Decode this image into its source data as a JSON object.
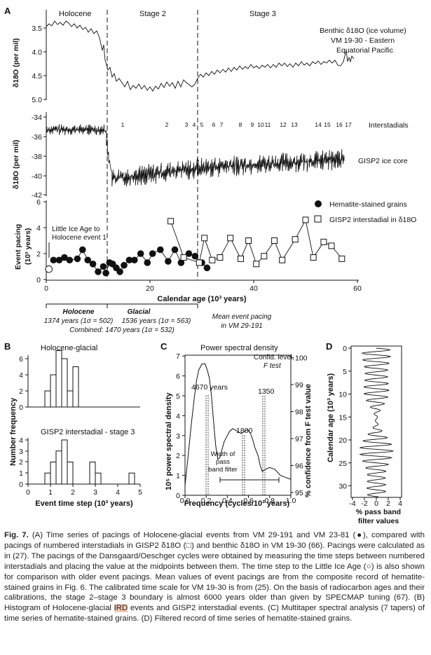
{
  "panelA": {
    "letter": "A",
    "periods": [
      "Holocene",
      "Stage 2",
      "Stage 3"
    ],
    "benthic": {
      "label_lines": [
        "Benthic δ18O (ice volume)",
        "VM 19-30 - Eastern",
        "Equatorial Pacific"
      ],
      "ylabel": "δ18O (per mil)",
      "ticks": [
        "3.5",
        "4.0",
        "4.5",
        "5.0"
      ]
    },
    "gisp": {
      "ylabel": "δ18O (per mil)",
      "ticks": [
        "-34",
        "-36",
        "-38",
        "-40",
        "-42"
      ],
      "label": "GISP2 ice core",
      "interstadials_label": "Interstadials",
      "interstadial_numbers": [
        "1",
        "2",
        "3",
        "4",
        "5",
        "6",
        "7",
        "8",
        "9",
        "10",
        "11",
        "12",
        "13",
        "14",
        "15",
        "16",
        "17"
      ]
    },
    "pacing": {
      "ylabel_lines": [
        "Event pacing",
        "(10³ years)"
      ],
      "ticks": [
        "0",
        "2",
        "4",
        "6"
      ],
      "xticks": [
        "0",
        "20",
        "40",
        "60"
      ],
      "xlabel": "Calendar age (10³ years)",
      "legend": [
        "Hematite-stained grains",
        "GISP2 interstadial in δ18O"
      ],
      "lia_note": [
        "Little Ice Age to",
        "Holocene event 1"
      ],
      "hematite": [
        [
          1.4,
          1.5
        ],
        [
          2.5,
          1.5
        ],
        [
          3.5,
          1.7
        ],
        [
          4.5,
          1.5
        ],
        [
          6,
          1.6
        ],
        [
          7,
          2.3
        ],
        [
          8,
          1.5
        ],
        [
          9,
          1.2
        ],
        [
          10,
          0.6
        ],
        [
          11,
          1.0
        ],
        [
          11.5,
          0.5
        ],
        [
          12.2,
          1.3
        ],
        [
          12.8,
          1.2
        ],
        [
          13.5,
          0.9
        ],
        [
          14.2,
          0.6
        ],
        [
          15,
          1.1
        ],
        [
          16,
          1.5
        ],
        [
          17,
          1.5
        ],
        [
          18.2,
          2.0
        ],
        [
          19.5,
          1.3
        ],
        [
          20.5,
          2.0
        ],
        [
          22,
          2.3
        ],
        [
          23.5,
          1.4
        ],
        [
          24.8,
          2.3
        ],
        [
          26,
          1.3
        ],
        [
          27.5,
          2.0
        ],
        [
          28.7,
          1.8
        ],
        [
          30,
          1.3
        ],
        [
          31,
          0.9
        ]
      ],
      "gisp2": [
        [
          24,
          4.5
        ],
        [
          26.5,
          1.7
        ],
        [
          29.5,
          1.3
        ],
        [
          30.5,
          3.2
        ],
        [
          32,
          1.5
        ],
        [
          33.5,
          1.7
        ],
        [
          35.5,
          3.2
        ],
        [
          37.5,
          1.6
        ],
        [
          39,
          3.0
        ],
        [
          40.5,
          1.2
        ],
        [
          42,
          1.8
        ],
        [
          44,
          3.0
        ],
        [
          45.5,
          1.5
        ],
        [
          48,
          3.1
        ],
        [
          50,
          4.6
        ],
        [
          51.5,
          1.7
        ],
        [
          53.5,
          2.9
        ],
        [
          55,
          2.6
        ],
        [
          57,
          1.6
        ]
      ],
      "lia_value": [
        0.5,
        0.8
      ]
    },
    "summary": {
      "holocene": "Holocene",
      "glacial": "Glacial",
      "holocene_value": "1374 years (1σ = 502)",
      "glacial_value": "1536 years (1σ = 563)",
      "combined": "Combined: 1470 years (1σ = 532)",
      "mean_note": [
        "Mean event pacing",
        "in VM 29-191"
      ]
    }
  },
  "panelB": {
    "letter": "B",
    "title1": "Holocene-glacial",
    "title2": "GISP2 interstadial - stage 3",
    "ylabel": "Number frequency",
    "xlabel": "Event time step (10³ years)",
    "yticks1": [
      "0",
      "2",
      "4",
      "6"
    ],
    "yticks2": [
      "0",
      "1",
      "2",
      "3",
      "4"
    ],
    "xticks": [
      "0",
      "1",
      "2",
      "3",
      "4",
      "5"
    ],
    "hist1": {
      "bins": [
        [
          0.75,
          1.0
        ],
        [
          1.0,
          1.25
        ],
        [
          1.25,
          1.5
        ],
        [
          1.5,
          1.75
        ],
        [
          1.75,
          2.0
        ],
        [
          2.0,
          2.25
        ]
      ],
      "counts": [
        2,
        4,
        7,
        6,
        2,
        5
      ]
    },
    "hist2": {
      "bins": [
        [
          0.75,
          1.0
        ],
        [
          1.0,
          1.25
        ],
        [
          1.25,
          1.5
        ],
        [
          1.5,
          1.75
        ],
        [
          1.75,
          2.0
        ],
        [
          2.75,
          3.0
        ],
        [
          3.0,
          3.25
        ],
        [
          4.5,
          4.75
        ]
      ],
      "counts": [
        1,
        2,
        3,
        4,
        2,
        2,
        1,
        1
      ]
    }
  },
  "panelC": {
    "letter": "C",
    "title": "Power spectral density",
    "ylabel_left": "10⁵ power spectral density",
    "ylabel_right": "% confidence from F test value",
    "xlabel": "Frequency (cycles/10³ years)",
    "yticks_left": [
      "0",
      "1",
      "2",
      "3",
      "4",
      "5",
      "6",
      "7"
    ],
    "yticks_right": [
      "95",
      "96",
      "97",
      "98",
      "99",
      "100"
    ],
    "xticks": [
      "0.0",
      "0.2",
      "0.4",
      "0.6",
      "0.8",
      "1.0"
    ],
    "peaks": [
      "4670 years",
      "1800",
      "1350"
    ],
    "confid_lines": [
      "Confid. level,",
      "F test"
    ],
    "band_note": [
      "Width of",
      "pass",
      "band filter"
    ],
    "psd": [
      [
        0.0,
        0.5
      ],
      [
        0.03,
        2.0
      ],
      [
        0.06,
        3.6
      ],
      [
        0.09,
        5.0
      ],
      [
        0.11,
        5.8
      ],
      [
        0.13,
        6.3
      ],
      [
        0.16,
        6.6
      ],
      [
        0.19,
        6.6
      ],
      [
        0.21,
        6.3
      ],
      [
        0.23,
        5.9
      ],
      [
        0.25,
        5.0
      ],
      [
        0.27,
        3.7
      ],
      [
        0.29,
        2.5
      ],
      [
        0.31,
        1.8
      ],
      [
        0.33,
        1.9
      ],
      [
        0.35,
        2.3
      ],
      [
        0.37,
        2.7
      ],
      [
        0.4,
        3.0
      ],
      [
        0.42,
        3.2
      ],
      [
        0.45,
        3.35
      ],
      [
        0.47,
        3.3
      ],
      [
        0.5,
        3.2
      ],
      [
        0.53,
        3.1
      ],
      [
        0.56,
        3.2
      ],
      [
        0.59,
        3.3
      ],
      [
        0.62,
        3.1
      ],
      [
        0.64,
        2.8
      ],
      [
        0.66,
        2.4
      ],
      [
        0.69,
        2.0
      ],
      [
        0.71,
        1.5
      ],
      [
        0.73,
        1.2
      ],
      [
        0.76,
        1.3
      ],
      [
        0.8,
        1.4
      ],
      [
        0.85,
        1.3
      ],
      [
        0.9,
        1.0
      ],
      [
        0.95,
        0.9
      ],
      [
        1.0,
        0.8
      ]
    ]
  },
  "panelD": {
    "letter": "D",
    "ylabel": "Calendar age (10³ years)",
    "xlabel_lines": [
      "% pass band",
      "filter values"
    ],
    "yticks": [
      "0",
      "5",
      "10",
      "15",
      "20",
      "25",
      "30"
    ],
    "xticks": [
      "-4",
      "-2",
      "0",
      "2",
      "4"
    ]
  },
  "caption": {
    "label": "Fig. 7.",
    "text": "(A) Time series of pacings of Holocene-glacial events from VM 29-191 and VM 23-81 (●), compared with pacings of numbered interstadials in GISP2 δ18O (□) and benthic δ18O in VM 19-30 (66). Pacings were calculated as in (27). The pacings of the Dansgaard/Oeschger cycles were obtained by measuring the time steps between numbered interstadials and placing the value at the midpoints between them. The time step to the Little Ice Age (○) is also shown for comparison with older event pacings. Mean values of event pacings are from the composite record of hematite-stained grains in Fig. 6. The calibrated time scale for VM 19-30 is from (25). On the basis of radiocarbon ages and their calibrations, the stage 2–stage 3 boundary is almost 6000 years older than given by SPECMAP tuning (67). (B) Histogram of Holocene-glacial",
    "highlight": "IRD",
    "text_end": " events and GISP2 interstadial events. (C) Multitaper spectral analysis (7 tapers) of time series of hematite-stained grains. (D) Filtered record of time series of hematite-stained grains."
  }
}
